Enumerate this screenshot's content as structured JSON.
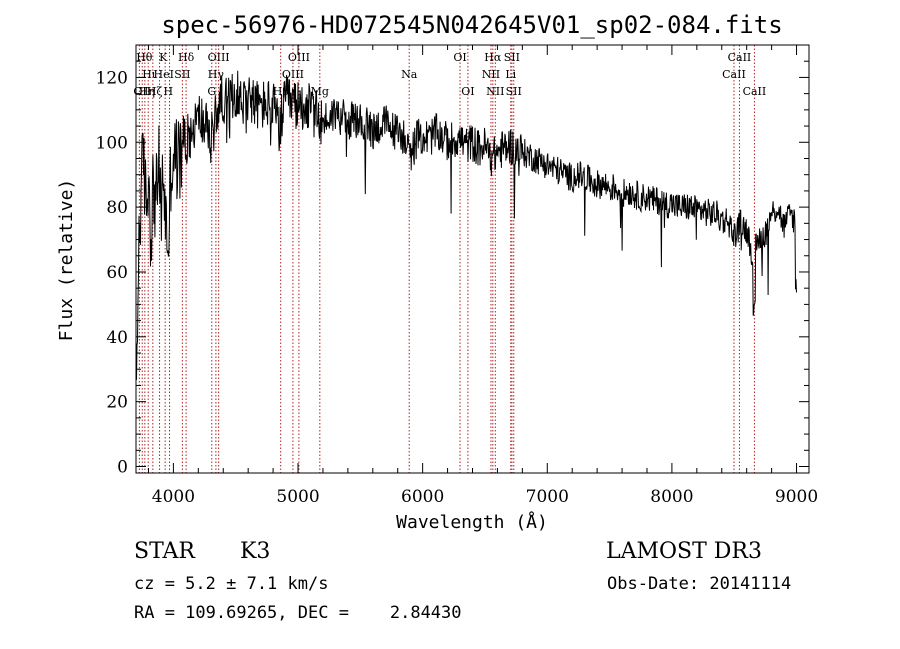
{
  "chart_data": {
    "type": "line",
    "title": "spec-56976-HD072545N042645V01_sp02-084.fits",
    "xlabel": "Wavelength (Å)",
    "ylabel": "Flux (relative)",
    "xlim": [
      3700,
      9100
    ],
    "ylim": [
      -2,
      130
    ],
    "xticks": [
      4000,
      5000,
      6000,
      7000,
      8000,
      9000
    ],
    "yticks": [
      0,
      20,
      40,
      60,
      80,
      100,
      120
    ],
    "x_tick_labels": [
      "4000",
      "5000",
      "6000",
      "7000",
      "8000",
      "9000"
    ],
    "y_tick_labels": [
      "0",
      "20",
      "40",
      "60",
      "80",
      "100",
      "120"
    ],
    "grid": false,
    "line_color": "#000000",
    "marker_color": "#b22222",
    "series": [
      {
        "points": [
          [
            3700,
            15
          ],
          [
            3720,
            65
          ],
          [
            3740,
            85
          ],
          [
            3760,
            95
          ],
          [
            3780,
            80
          ],
          [
            3800,
            90
          ],
          [
            3820,
            72
          ],
          [
            3840,
            88
          ],
          [
            3860,
            80
          ],
          [
            3880,
            95
          ],
          [
            3900,
            78
          ],
          [
            3920,
            90
          ],
          [
            3940,
            75
          ],
          [
            3960,
            68
          ],
          [
            3980,
            92
          ],
          [
            4000,
            96
          ],
          [
            4050,
            94
          ],
          [
            4100,
            100
          ],
          [
            4150,
            104
          ],
          [
            4200,
            108
          ],
          [
            4250,
            106
          ],
          [
            4300,
            100
          ],
          [
            4350,
            110
          ],
          [
            4400,
            114
          ],
          [
            4450,
            112
          ],
          [
            4500,
            116
          ],
          [
            4550,
            112
          ],
          [
            4600,
            115
          ],
          [
            4650,
            112
          ],
          [
            4700,
            111
          ],
          [
            4750,
            112
          ],
          [
            4800,
            111
          ],
          [
            4850,
            104
          ],
          [
            4900,
            113
          ],
          [
            4950,
            112
          ],
          [
            5000,
            111
          ],
          [
            5050,
            112
          ],
          [
            5100,
            110
          ],
          [
            5150,
            108
          ],
          [
            5200,
            106
          ],
          [
            5250,
            108
          ],
          [
            5300,
            109
          ],
          [
            5350,
            108
          ],
          [
            5400,
            106
          ],
          [
            5450,
            107
          ],
          [
            5500,
            106
          ],
          [
            5550,
            105
          ],
          [
            5600,
            104
          ],
          [
            5650,
            105
          ],
          [
            5700,
            106
          ],
          [
            5750,
            104
          ],
          [
            5800,
            103
          ],
          [
            5850,
            102
          ],
          [
            5900,
            95
          ],
          [
            5950,
            101
          ],
          [
            6000,
            102
          ],
          [
            6050,
            101
          ],
          [
            6100,
            103
          ],
          [
            6150,
            102
          ],
          [
            6200,
            100
          ],
          [
            6250,
            101
          ],
          [
            6300,
            101
          ],
          [
            6350,
            99
          ],
          [
            6400,
            100
          ],
          [
            6450,
            98
          ],
          [
            6500,
            99
          ],
          [
            6550,
            95
          ],
          [
            6600,
            97
          ],
          [
            6650,
            98
          ],
          [
            6700,
            99
          ],
          [
            6750,
            98
          ],
          [
            6800,
            97
          ],
          [
            6850,
            96
          ],
          [
            6900,
            95
          ],
          [
            6950,
            94
          ],
          [
            7000,
            93
          ],
          [
            7050,
            92
          ],
          [
            7100,
            91
          ],
          [
            7150,
            90
          ],
          [
            7200,
            89
          ],
          [
            7250,
            90
          ],
          [
            7300,
            89
          ],
          [
            7350,
            88
          ],
          [
            7400,
            87
          ],
          [
            7450,
            87
          ],
          [
            7500,
            86
          ],
          [
            7550,
            86
          ],
          [
            7600,
            84
          ],
          [
            7650,
            85
          ],
          [
            7700,
            84
          ],
          [
            7750,
            83
          ],
          [
            7800,
            83
          ],
          [
            7850,
            82
          ],
          [
            7900,
            82
          ],
          [
            7950,
            81
          ],
          [
            8000,
            81
          ],
          [
            8050,
            80
          ],
          [
            8100,
            80
          ],
          [
            8150,
            80
          ],
          [
            8200,
            79
          ],
          [
            8250,
            79
          ],
          [
            8300,
            78
          ],
          [
            8350,
            78
          ],
          [
            8400,
            76
          ],
          [
            8450,
            76
          ],
          [
            8500,
            71
          ],
          [
            8550,
            75
          ],
          [
            8600,
            73
          ],
          [
            8650,
            65
          ],
          [
            8700,
            70
          ],
          [
            8750,
            72
          ],
          [
            8800,
            78
          ],
          [
            8850,
            80
          ],
          [
            8900,
            74
          ],
          [
            8950,
            78
          ],
          [
            9000,
            75
          ]
        ]
      }
    ],
    "lines": [
      {
        "x": 3727,
        "label": "OII",
        "row": 3,
        "anchor": "start"
      },
      {
        "x": 3750,
        "label": "Hθ",
        "row": 1,
        "anchor": "start"
      },
      {
        "x": 3771,
        "label": "Hη",
        "row": 3,
        "anchor": "start"
      },
      {
        "x": 3798,
        "label": "Hι",
        "row": 2,
        "anchor": "start"
      },
      {
        "x": 3835,
        "label": "Hζ",
        "row": 3,
        "anchor": "start"
      },
      {
        "x": 3889,
        "label": "HeI",
        "row": 2,
        "anchor": "start"
      },
      {
        "x": 3934,
        "label": "K",
        "row": 1,
        "anchor": "start"
      },
      {
        "x": 3969,
        "label": "H",
        "row": 3,
        "anchor": "start"
      },
      {
        "x": 4072,
        "label": "SII",
        "row": 2,
        "anchor": "middle"
      },
      {
        "x": 4102,
        "label": "Hδ",
        "row": 1,
        "anchor": "middle"
      },
      {
        "x": 4308,
        "label": "G",
        "row": 3,
        "anchor": "middle"
      },
      {
        "x": 4341,
        "label": "Hγ",
        "row": 2,
        "anchor": "middle"
      },
      {
        "x": 4363,
        "label": "OIII",
        "row": 1,
        "anchor": "middle"
      },
      {
        "x": 4861,
        "label": "Hβ",
        "row": 3,
        "anchor": "middle"
      },
      {
        "x": 4959,
        "label": "OIII",
        "row": 2,
        "anchor": "middle"
      },
      {
        "x": 5007,
        "label": "OIII",
        "row": 1,
        "anchor": "middle"
      },
      {
        "x": 5175,
        "label": "Mg",
        "row": 3,
        "anchor": "middle"
      },
      {
        "x": 5892,
        "label": "Na",
        "row": 2,
        "anchor": "middle"
      },
      {
        "x": 6300,
        "label": "OI",
        "row": 1,
        "anchor": "middle"
      },
      {
        "x": 6363,
        "label": "OI",
        "row": 3,
        "anchor": "middle"
      },
      {
        "x": 6548,
        "label": "NII",
        "row": 2,
        "anchor": "middle"
      },
      {
        "x": 6563,
        "label": "Hα",
        "row": 1,
        "anchor": "middle"
      },
      {
        "x": 6583,
        "label": "NII",
        "row": 3,
        "anchor": "middle"
      },
      {
        "x": 6707,
        "label": "Li",
        "row": 2,
        "anchor": "middle"
      },
      {
        "x": 6716,
        "label": "SII",
        "row": 1,
        "anchor": "middle"
      },
      {
        "x": 6731,
        "label": "SII",
        "row": 3,
        "anchor": "middle"
      },
      {
        "x": 8498,
        "label": "CaII",
        "row": 2,
        "anchor": "middle"
      },
      {
        "x": 8542,
        "label": "CaII",
        "row": 1,
        "anchor": "middle"
      },
      {
        "x": 8662,
        "label": "CaII",
        "row": 3,
        "anchor": "middle"
      }
    ]
  },
  "info": {
    "object_class": "STAR",
    "subclass": "K3",
    "survey": "LAMOST DR3",
    "cz": "cz = 5.2 ± 7.1 km/s",
    "obs_date": "Obs-Date: 20141114",
    "coords": "RA = 109.69265, DEC =    2.84430"
  }
}
